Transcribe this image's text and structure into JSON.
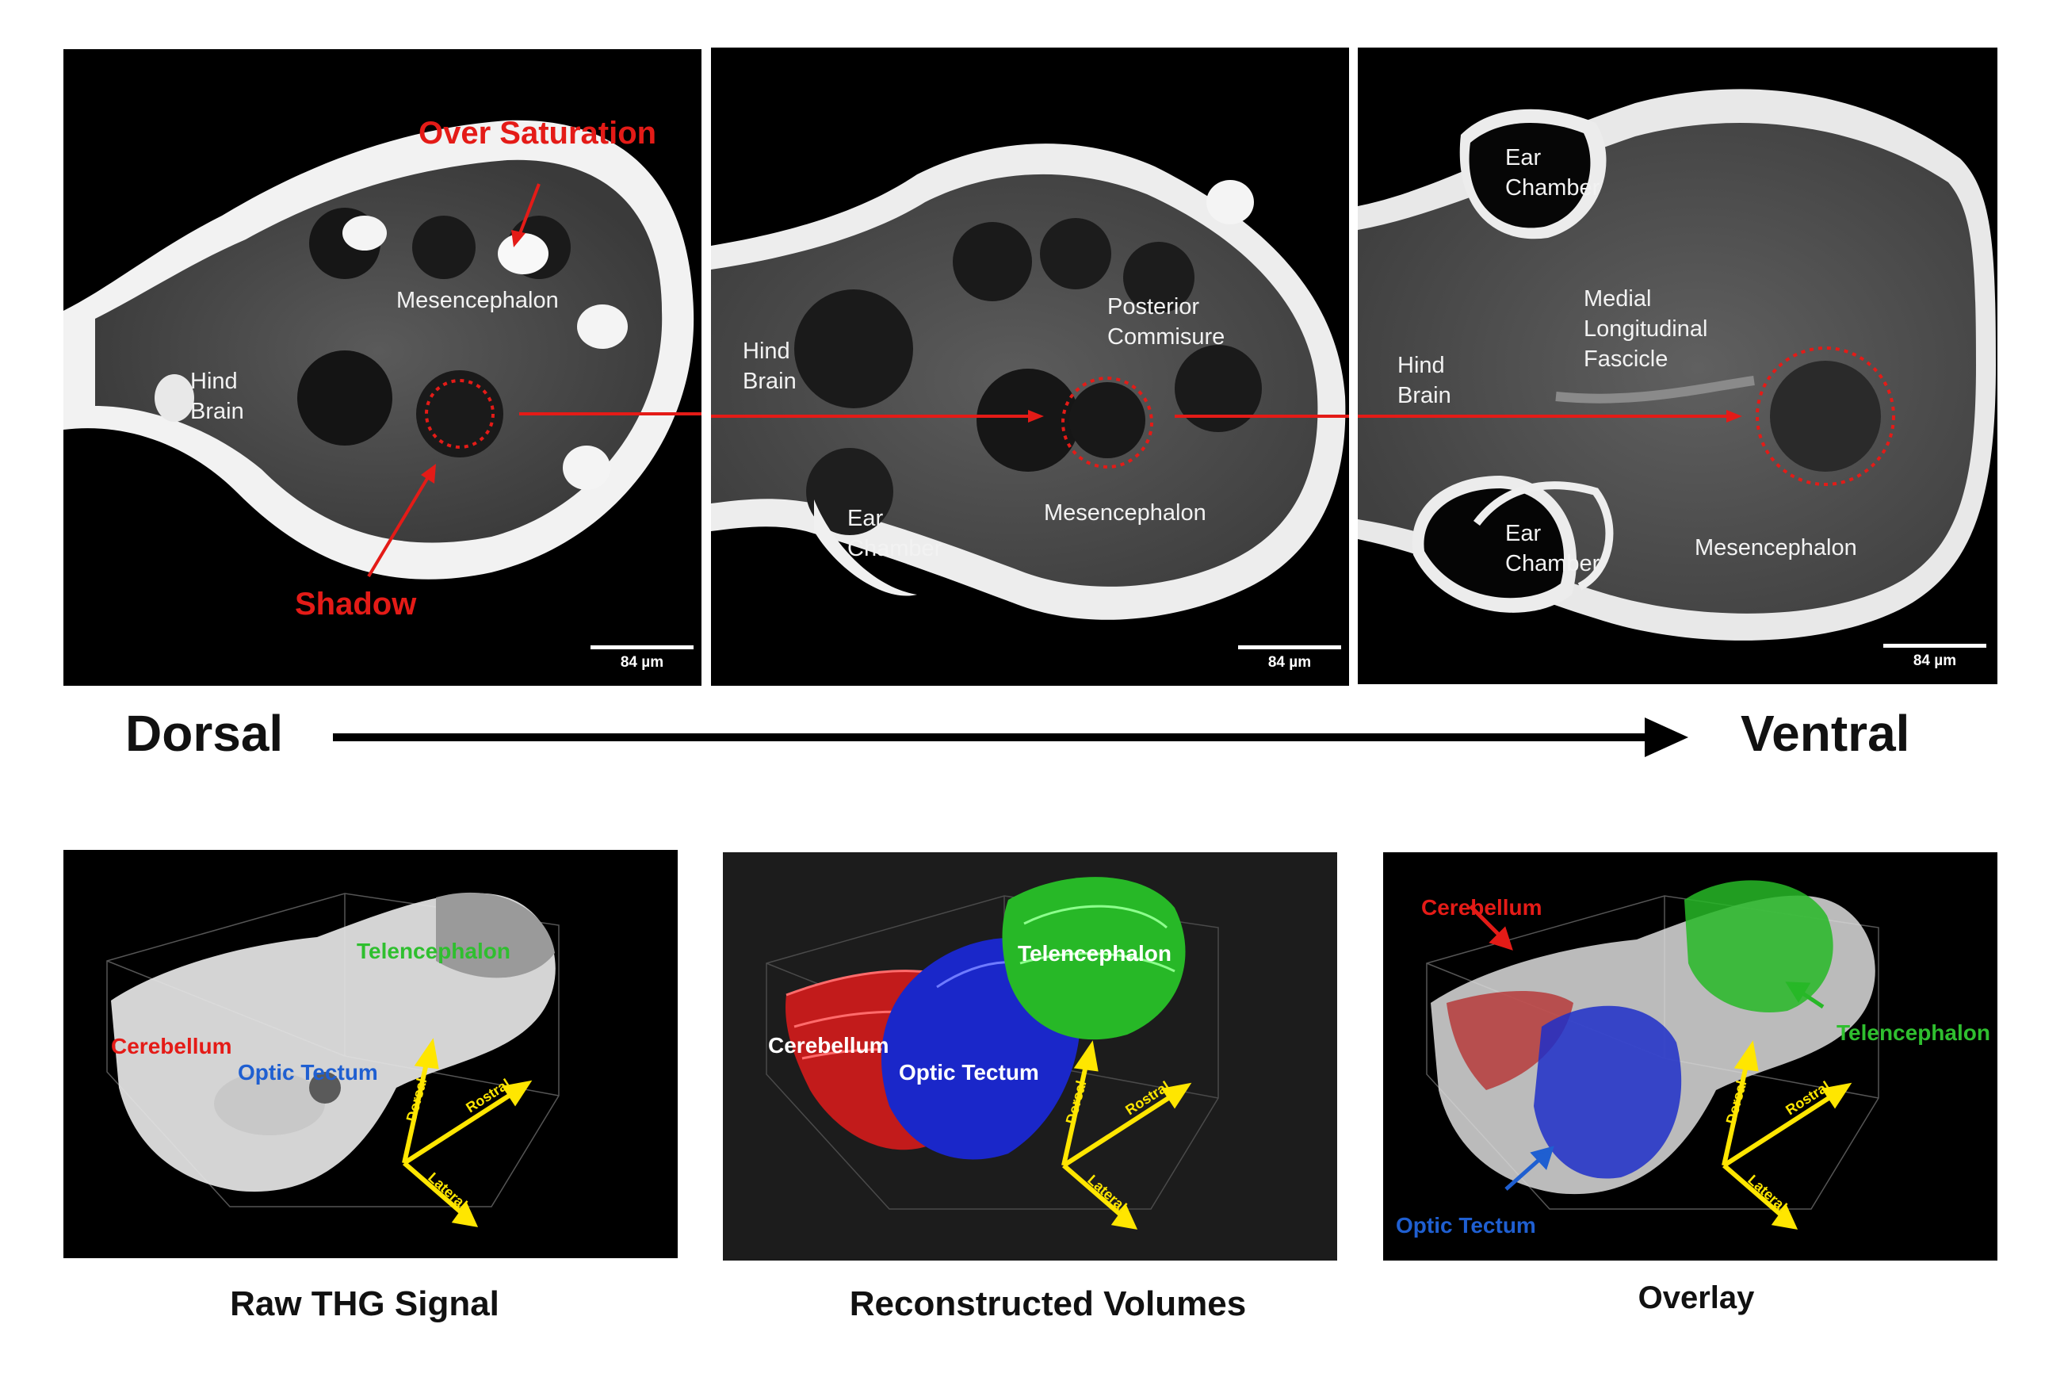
{
  "top_panels": [
    {
      "labels": {
        "hind_brain": "Hind\nBrain",
        "mesencephalon": "Mesencephalon"
      },
      "annotations": {
        "over_saturation": "Over Saturation",
        "shadow": "Shadow"
      },
      "scale_bar": "84 µm"
    },
    {
      "labels": {
        "hind_brain": "Hind\nBrain",
        "posterior_commisure": "Posterior\nCommisure",
        "mesencephalon": "Mesencephalon",
        "ear_chamber": "Ear\nChamber"
      },
      "scale_bar": "84 µm"
    },
    {
      "labels": {
        "ear_chamber_top": "Ear\nChamber",
        "medial_longitudinal_fascicle": "Medial\nLongitudinal\nFascicle",
        "hind_brain": "Hind\nBrain",
        "ear_chamber_bottom": "Ear\nChamber",
        "mesencephalon": "Mesencephalon"
      },
      "scale_bar": "84 µm"
    }
  ],
  "orientation": {
    "start": "Dorsal",
    "end": "Ventral"
  },
  "bottom_panels": [
    {
      "caption": "Raw THG Signal",
      "labels": {
        "telencephalon": "Telencephalon",
        "cerebellum": "Cerebellum",
        "optic_tectum": "Optic Tectum"
      },
      "axes": {
        "dorsal": "Dorsal",
        "rostral": "Rostral",
        "lateral": "Lateral"
      }
    },
    {
      "caption": "Reconstructed Volumes",
      "labels": {
        "telencephalon": "Telencephalon",
        "cerebellum": "Cerebellum",
        "optic_tectum": "Optic Tectum"
      },
      "axes": {
        "dorsal": "Dorsal",
        "rostral": "Rostral",
        "lateral": "Lateral"
      }
    },
    {
      "caption": "Overlay",
      "labels": {
        "cerebellum": "Cerebellum",
        "telencephalon": "Telencephalon",
        "optic_tectum": "Optic Tectum"
      },
      "axes": {
        "dorsal": "Dorsal",
        "rostral": "Rostral",
        "lateral": "Lateral"
      }
    }
  ],
  "colors": {
    "annotation_red": "#e41b17",
    "cerebellum": "#e41b17",
    "optic_tectum": "#1f3fd1",
    "telencephalon": "#2fbf2f",
    "axis_yellow": "#ffe600"
  }
}
